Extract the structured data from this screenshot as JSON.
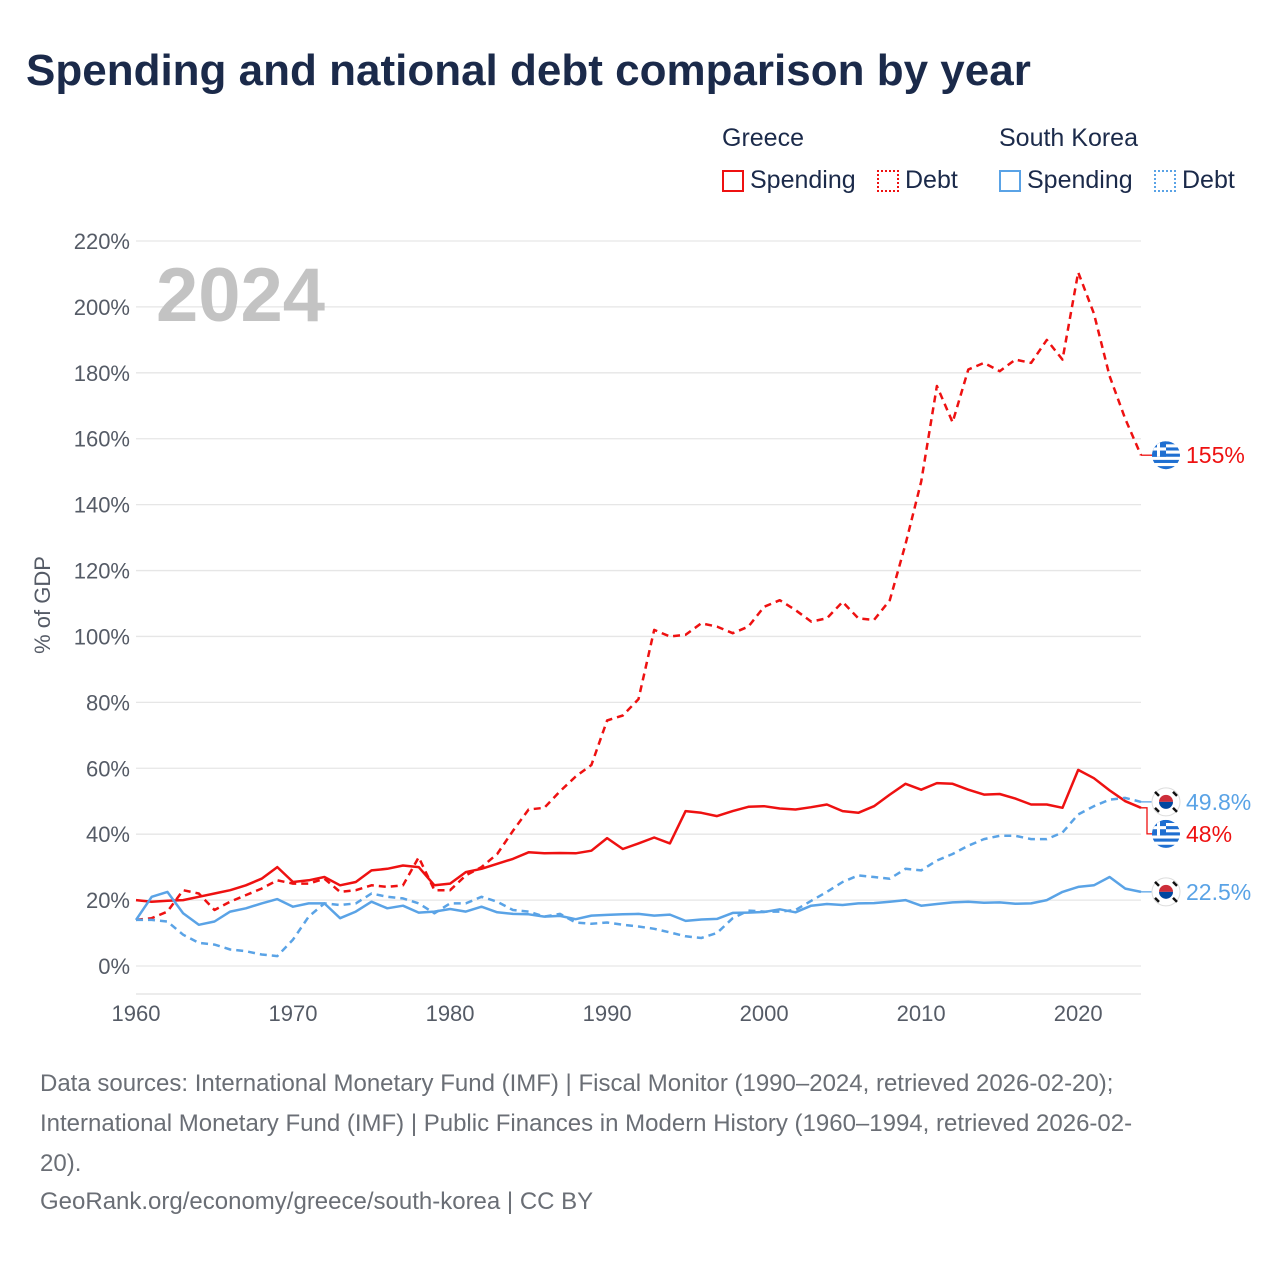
{
  "title": "Spending and national debt comparison by year",
  "year_label": "2024",
  "legend": {
    "greece": {
      "title": "Greece",
      "spending": "Spending",
      "debt": "Debt"
    },
    "korea": {
      "title": "South Korea",
      "spending": "Spending",
      "debt": "Debt"
    }
  },
  "colors": {
    "greece": "#ee1111",
    "korea": "#5aa3e6",
    "grid": "#e6e6e6"
  },
  "icons": {
    "greece": "greece-flag-icon",
    "korea": "south-korea-flag-icon"
  },
  "footer": {
    "line1": "Data sources: International Monetary Fund (IMF) | Fiscal Monitor (1990–2024, retrieved 2026-02-20);",
    "line2": "International Monetary Fund (IMF) | Public Finances in Modern History (1960–1994, retrieved 2026-02-",
    "line3": "20).",
    "line4": "GeoRank.org/economy/greece/south-korea | CC BY"
  },
  "chart_data": {
    "type": "line",
    "ylabel": "% of GDP",
    "xlim": [
      1960,
      2024
    ],
    "ylim": [
      0,
      220
    ],
    "x_ticks": [
      1960,
      1970,
      1980,
      1990,
      2000,
      2010,
      2020
    ],
    "x_tick_labels": [
      "1960",
      "1970",
      "1980",
      "1990",
      "2000",
      "2010",
      "2020"
    ],
    "y_ticks": [
      0,
      20,
      40,
      60,
      80,
      100,
      120,
      140,
      160,
      180,
      200,
      220
    ],
    "y_tick_labels": [
      "0%",
      "20%",
      "40%",
      "60%",
      "80%",
      "100%",
      "120%",
      "140%",
      "160%",
      "180%",
      "200%",
      "220%"
    ],
    "x": [
      1960,
      1961,
      1962,
      1963,
      1964,
      1965,
      1966,
      1967,
      1968,
      1969,
      1970,
      1971,
      1972,
      1973,
      1974,
      1975,
      1976,
      1977,
      1978,
      1979,
      1980,
      1981,
      1982,
      1983,
      1984,
      1985,
      1986,
      1987,
      1988,
      1989,
      1990,
      1991,
      1992,
      1993,
      1994,
      1995,
      1996,
      1997,
      1998,
      1999,
      2000,
      2001,
      2002,
      2003,
      2004,
      2005,
      2006,
      2007,
      2008,
      2009,
      2010,
      2011,
      2012,
      2013,
      2014,
      2015,
      2016,
      2017,
      2018,
      2019,
      2020,
      2021,
      2022,
      2023,
      2024
    ],
    "series": [
      {
        "name": "Greece Spending",
        "country": "greece",
        "style": "solid",
        "end_label": "48%",
        "values": [
          20,
          19.5,
          19.8,
          20,
          21,
          22,
          23,
          24.5,
          26.5,
          30,
          25.5,
          26,
          27,
          24.5,
          25.5,
          29,
          29.5,
          30.5,
          30,
          24.5,
          25,
          28.5,
          29.5,
          31,
          32.5,
          34.5,
          34.2,
          34.3,
          34.2,
          35,
          38.8,
          35.5,
          37.2,
          39,
          37.2,
          47,
          46.5,
          45.5,
          47,
          48.3,
          48.5,
          47.8,
          47.5,
          48.2,
          49,
          47,
          46.5,
          48.5,
          52,
          55.3,
          53.5,
          55.5,
          55.3,
          53.5,
          52,
          52.2,
          50.8,
          49,
          49,
          48,
          59.5,
          57,
          53.3,
          50,
          48
        ]
      },
      {
        "name": "Greece Debt",
        "country": "greece",
        "style": "dashed",
        "end_label": "155%",
        "values": [
          14,
          14.5,
          16.5,
          23,
          22,
          17,
          19.5,
          21.5,
          23.5,
          26,
          25,
          25,
          26.5,
          22.5,
          23,
          24.5,
          24,
          24.5,
          33,
          23,
          23,
          27.5,
          30,
          34,
          41,
          47.5,
          48,
          53,
          57.5,
          61,
          74.5,
          76,
          81,
          102,
          100,
          100.5,
          104,
          103,
          101,
          103,
          109,
          111,
          108,
          104.5,
          105.5,
          110.5,
          105.5,
          105,
          111,
          128,
          147,
          176,
          165,
          181,
          183,
          180.5,
          184,
          183,
          190,
          184,
          210.5,
          198,
          179,
          166,
          155
        ]
      },
      {
        "name": "South Korea Spending",
        "country": "korea",
        "style": "solid",
        "end_label": "22.5%",
        "values": [
          14,
          21,
          22.5,
          16,
          12.5,
          13.5,
          16.5,
          17.5,
          19,
          20.3,
          18,
          19,
          19,
          14.5,
          16.5,
          19.5,
          17.5,
          18.3,
          16.2,
          16.5,
          17.3,
          16.5,
          18,
          16.3,
          15.8,
          15.7,
          15,
          15.2,
          14.2,
          15.3,
          15.5,
          15.7,
          15.8,
          15.3,
          15.6,
          13.7,
          14.1,
          14.3,
          16.1,
          16.2,
          16.4,
          17.2,
          16.3,
          18.3,
          18.8,
          18.5,
          19,
          19.1,
          19.5,
          20,
          18.3,
          18.8,
          19.3,
          19.5,
          19.2,
          19.3,
          18.9,
          19,
          20,
          22.5,
          24,
          24.5,
          27,
          23.5,
          22.5
        ]
      },
      {
        "name": "South Korea Debt",
        "country": "korea",
        "style": "dashed",
        "end_label": "49.8%",
        "values": [
          14,
          14,
          13.5,
          9.5,
          7,
          6.5,
          5,
          4.5,
          3.5,
          3,
          8,
          15,
          19,
          18.5,
          19,
          22,
          21,
          20.5,
          19,
          16,
          19,
          19,
          21,
          19.5,
          17,
          16.5,
          15,
          15.8,
          13.2,
          12.8,
          13.2,
          12.5,
          12,
          11.3,
          10.2,
          9,
          8.5,
          10,
          14.5,
          16.8,
          16.5,
          16.5,
          17,
          19.8,
          22.5,
          25.5,
          27.5,
          27,
          26.5,
          29.5,
          29,
          32,
          34,
          36.5,
          38.5,
          39.5,
          39.5,
          38.5,
          38.5,
          40.5,
          46,
          48.5,
          50.5,
          51,
          49.8
        ]
      }
    ]
  }
}
